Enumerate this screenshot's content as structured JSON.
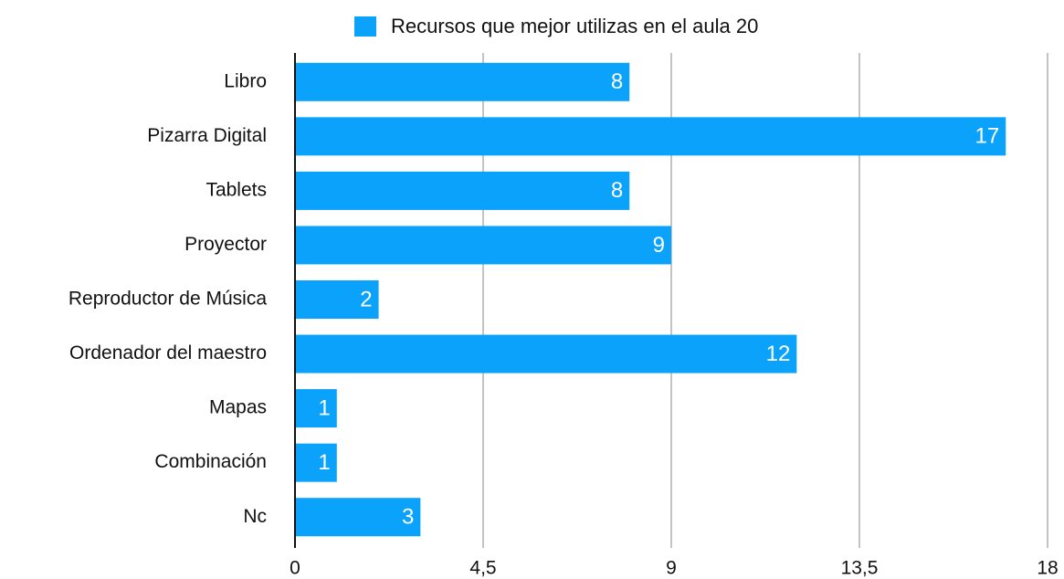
{
  "chart_data": {
    "type": "bar",
    "orientation": "horizontal",
    "categories": [
      "Libro",
      "Pizarra Digital",
      "Tablets",
      "Proyector",
      "Reproductor de Música",
      "Ordenador del maestro",
      "Mapas",
      "Combinación",
      "Nc"
    ],
    "series": [
      {
        "name": "Recursos que mejor utilizas en el aula 20",
        "color": "#0aa2fa",
        "values": [
          8,
          17,
          8,
          9,
          2,
          12,
          1,
          1,
          3
        ]
      }
    ],
    "xlim": [
      0,
      18
    ],
    "xticks": [
      0,
      {
        "value": 4.5,
        "label": "4,5"
      },
      9,
      {
        "value": 13.5,
        "label": "13,5"
      },
      18
    ],
    "grid": true,
    "legend": "top"
  }
}
